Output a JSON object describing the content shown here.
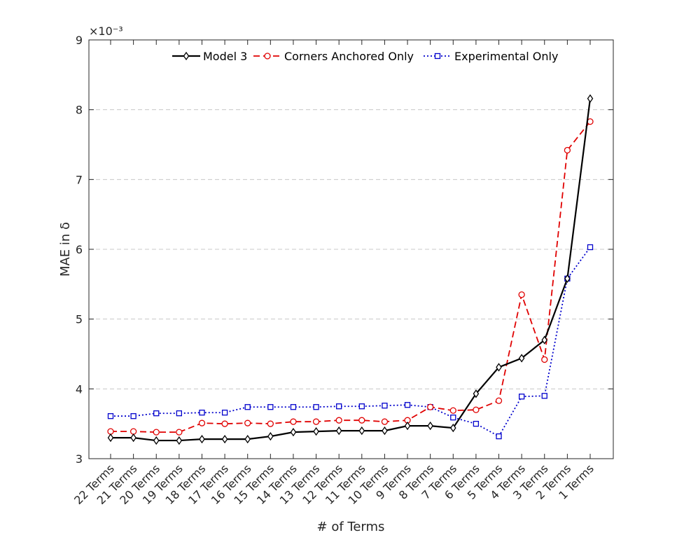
{
  "chart_data": {
    "type": "line",
    "categories": [
      "22 Terms",
      "21 Terms",
      "20 Terms",
      "19 Terms",
      "18 Terms",
      "17 Terms",
      "16 Terms",
      "15 Terms",
      "14 Terms",
      "13 Terms",
      "12 Terms",
      "11 Terms",
      "10 Terms",
      "9 Terms",
      "8 Terms",
      "7 Terms",
      "6 Terms",
      "5 Terms",
      "4 Terms",
      "3 Terms",
      "2 Terms",
      "1 Terms"
    ],
    "series": [
      {
        "name": "Model 3",
        "color": "#000000",
        "line_style": "solid",
        "marker": "diamond",
        "values": [
          3.3,
          3.3,
          3.26,
          3.26,
          3.28,
          3.28,
          3.28,
          3.32,
          3.38,
          3.39,
          3.4,
          3.4,
          3.4,
          3.47,
          3.47,
          3.44,
          3.93,
          4.31,
          4.44,
          4.7,
          5.58,
          8.16
        ]
      },
      {
        "name": "Corners Anchored Only",
        "color": "#e00000",
        "line_style": "dashed",
        "marker": "circle",
        "values": [
          3.39,
          3.39,
          3.38,
          3.38,
          3.51,
          3.5,
          3.51,
          3.5,
          3.53,
          3.53,
          3.55,
          3.55,
          3.53,
          3.55,
          3.74,
          3.69,
          3.7,
          3.83,
          5.35,
          4.42,
          7.42,
          7.83
        ]
      },
      {
        "name": "Experimental Only",
        "color": "#0000cc",
        "line_style": "dotted",
        "marker": "square",
        "values": [
          3.61,
          3.61,
          3.65,
          3.65,
          3.66,
          3.66,
          3.74,
          3.74,
          3.74,
          3.74,
          3.75,
          3.75,
          3.76,
          3.77,
          3.74,
          3.59,
          3.5,
          3.32,
          3.89,
          3.9,
          5.58,
          6.03
        ]
      }
    ],
    "xlabel": "# of Terms",
    "ylabel": "MAE in δ",
    "ylim": [
      3,
      9
    ],
    "yticks": [
      "3",
      "4",
      "5",
      "6",
      "7",
      "8",
      "9"
    ],
    "y_multiplier": "×10⁻³",
    "grid": "horizontal dashed",
    "legend_position": "top, horizontal"
  }
}
